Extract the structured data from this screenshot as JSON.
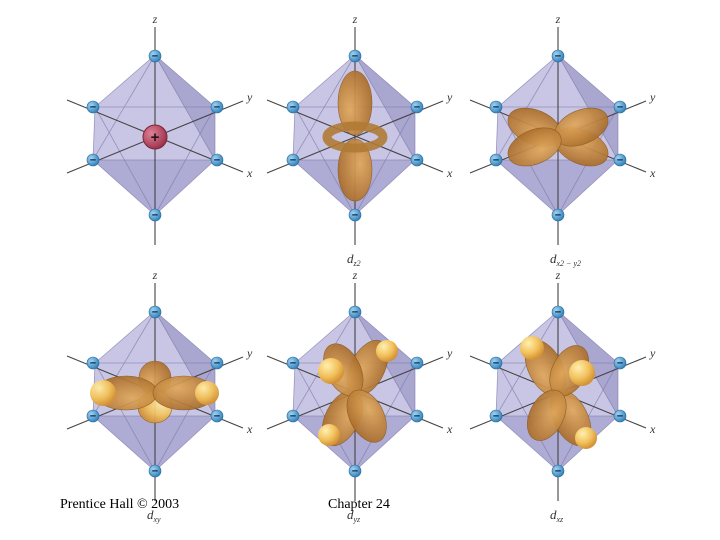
{
  "diagrams": [
    {
      "orbital": "point-charge",
      "label_main": "",
      "label_sub": "",
      "center_symbol": "+"
    },
    {
      "orbital": "dz2",
      "label_main": "d",
      "label_sub": "z2"
    },
    {
      "orbital": "dx2-y2",
      "label_main": "d",
      "label_sub": "x2 − y2"
    },
    {
      "orbital": "dxy",
      "label_main": "d",
      "label_sub": "xy"
    },
    {
      "orbital": "dyz",
      "label_main": "d",
      "label_sub": "yz"
    },
    {
      "orbital": "dxz",
      "label_main": "d",
      "label_sub": "xz"
    }
  ],
  "axis_labels": {
    "z": "z",
    "y": "y",
    "x": "x"
  },
  "ligand_symbol": "−",
  "footer": {
    "left": "Prentice Hall © 2003",
    "right": "Chapter 24"
  },
  "colors": {
    "octahedron": "#b9b6dd",
    "octahedron_dark": "#8f8cc0",
    "lobe": "#c98a40",
    "lobe_light": "#f2cd78",
    "ligand": "#4f9fd6",
    "central_charge": "#b34a60"
  }
}
